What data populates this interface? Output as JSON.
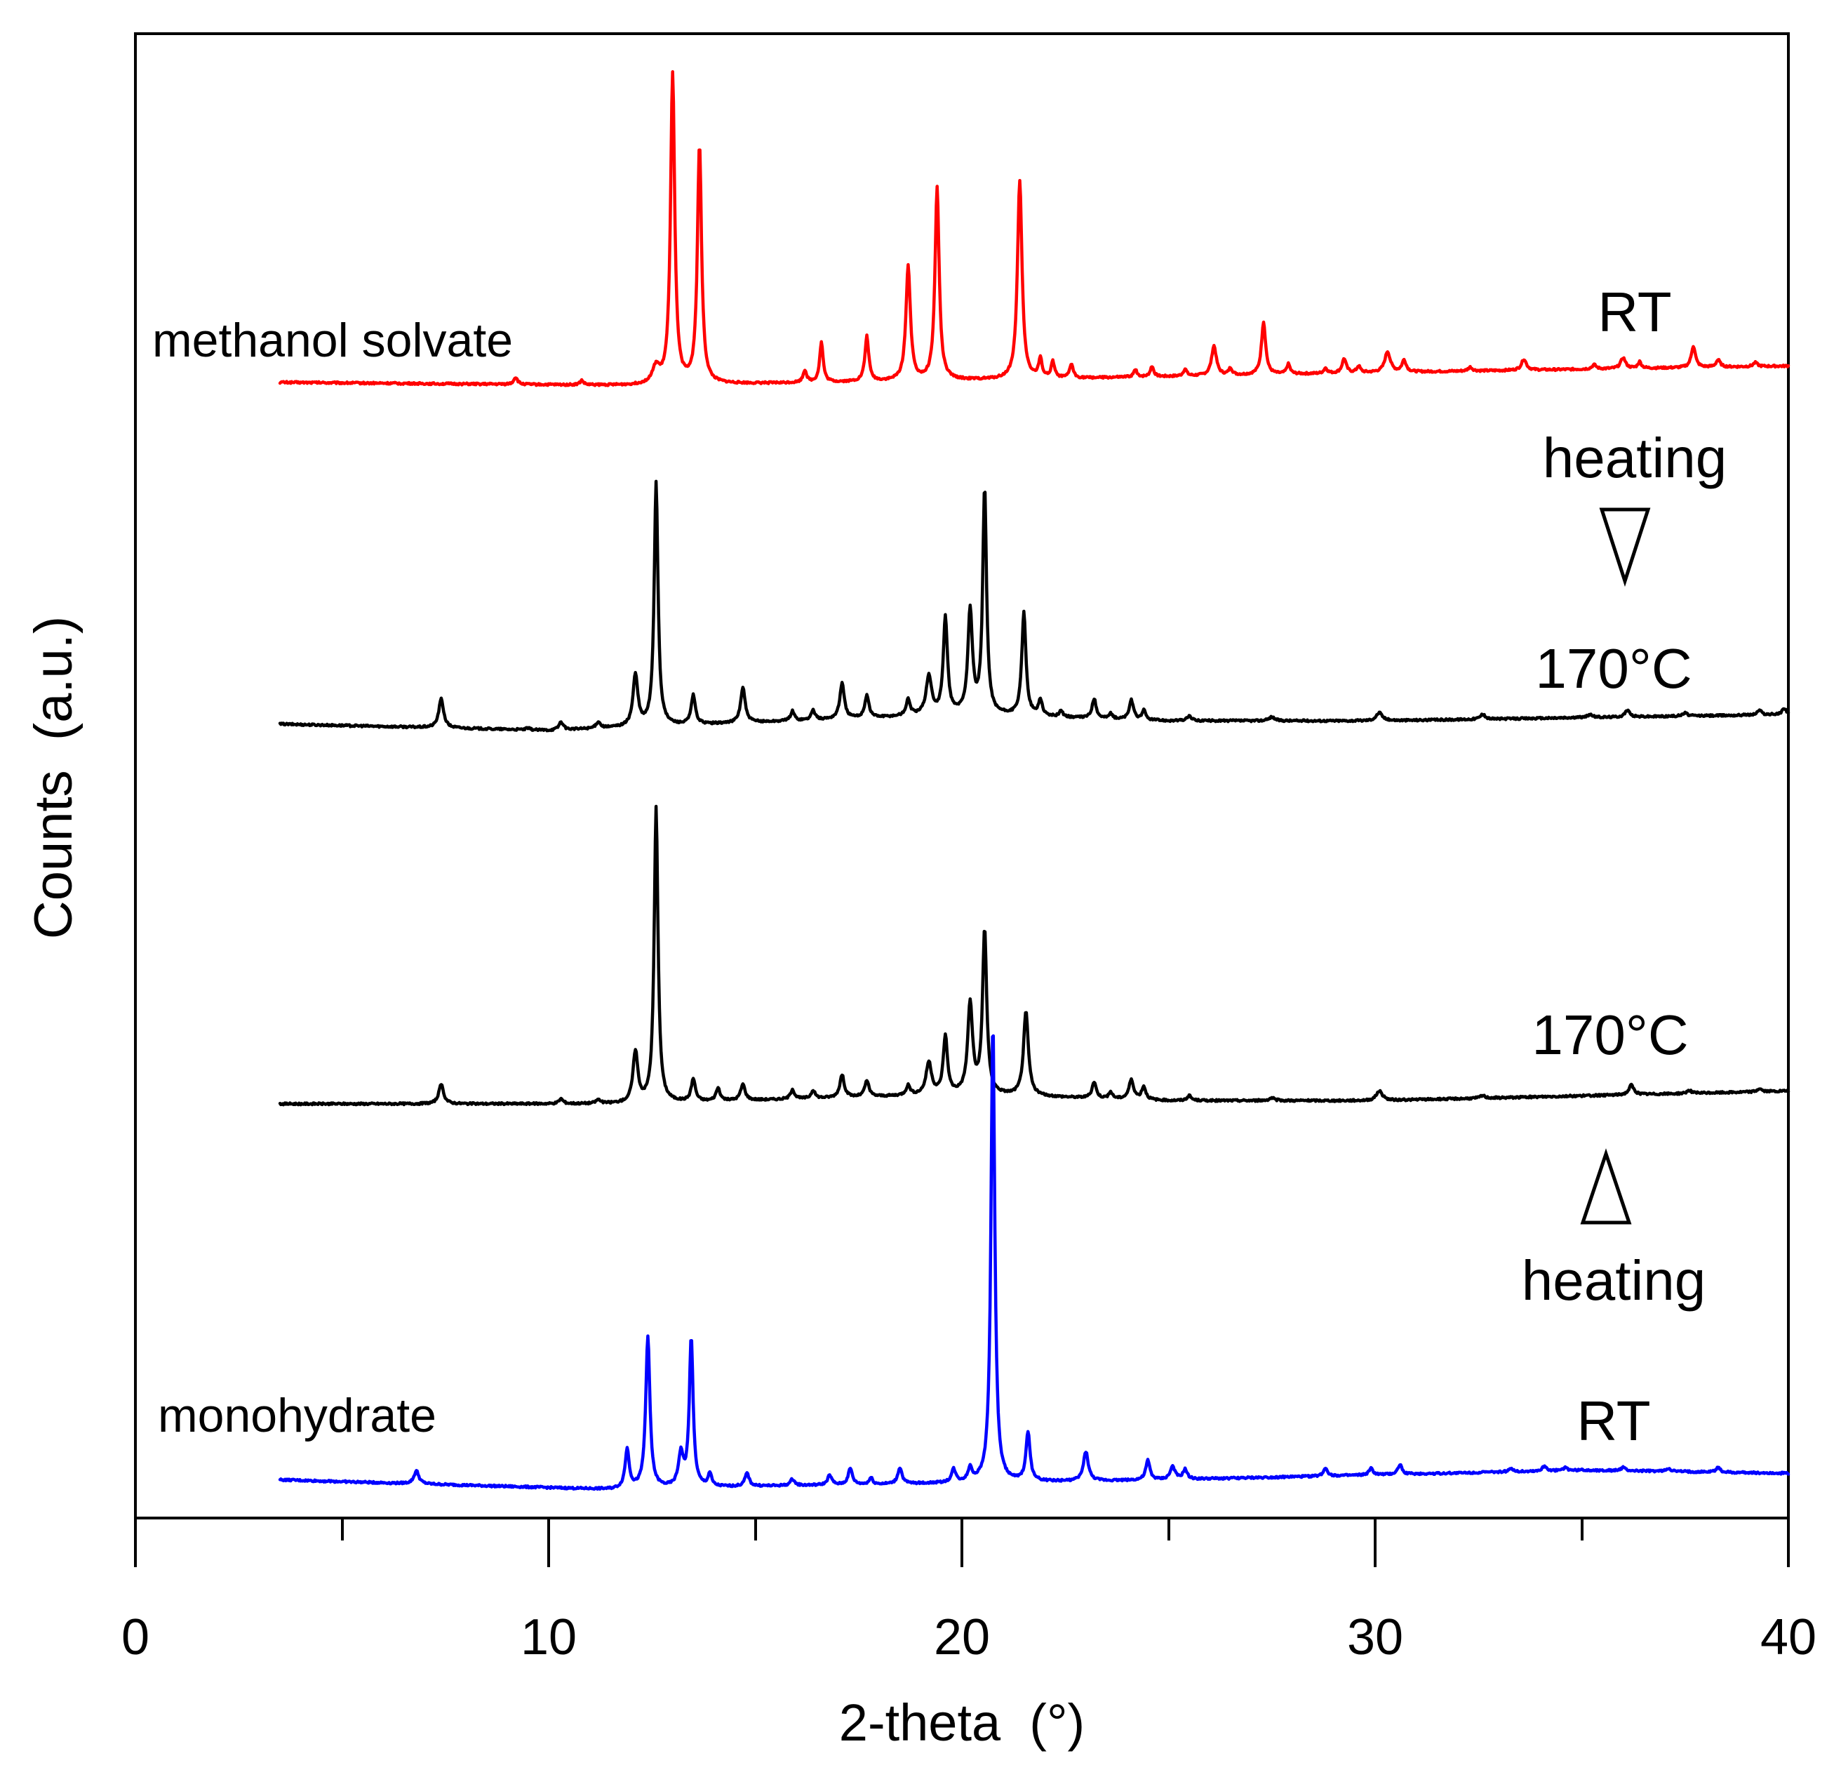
{
  "chart_data": {
    "type": "line",
    "title": "",
    "xlabel": "2-theta  (°)",
    "ylabel": "Counts  (a.u.)",
    "xlim": [
      0,
      40
    ],
    "x_ticks": [
      0,
      10,
      20,
      30,
      40
    ],
    "x_tick_labels": [
      "0",
      "10",
      "20",
      "30",
      "40"
    ],
    "y_ticks_shown": false,
    "grid": false,
    "legend": "none",
    "x_range_measured": [
      3.5,
      40
    ],
    "series": [
      {
        "name": "methanol solvate",
        "condition": "RT",
        "color": "#ff0000",
        "baseline": [
          [
            3.5,
            5
          ],
          [
            12,
            4
          ],
          [
            22,
            6
          ],
          [
            30,
            8
          ],
          [
            40,
            10
          ]
        ],
        "peaks": [
          [
            9.2,
            0.055,
            2.19
          ],
          [
            10.8,
            0.05,
            1.35
          ],
          [
            12.6,
            0.1,
            4.9
          ],
          [
            13.0,
            0.06,
            95.0
          ],
          [
            13.65,
            0.06,
            73.0
          ],
          [
            16.2,
            0.05,
            3.75
          ],
          [
            16.6,
            0.05,
            12.3
          ],
          [
            17.7,
            0.055,
            13.8
          ],
          [
            18.7,
            0.065,
            35.0
          ],
          [
            19.4,
            0.06,
            59.0
          ],
          [
            21.4,
            0.065,
            61.0
          ],
          [
            21.9,
            0.05,
            5.8
          ],
          [
            22.2,
            0.05,
            4.9
          ],
          [
            22.65,
            0.05,
            4.3
          ],
          [
            24.2,
            0.05,
            2.2
          ],
          [
            24.6,
            0.05,
            3.2
          ],
          [
            25.4,
            0.05,
            2.15
          ],
          [
            26.1,
            0.07,
            9.1
          ],
          [
            26.5,
            0.05,
            2.1
          ],
          [
            27.3,
            0.06,
            16.2
          ],
          [
            27.9,
            0.05,
            3.0
          ],
          [
            28.8,
            0.05,
            1.6
          ],
          [
            29.25,
            0.06,
            4.4
          ],
          [
            29.6,
            0.05,
            2.0
          ],
          [
            30.3,
            0.08,
            6.3
          ],
          [
            30.7,
            0.06,
            3.6
          ],
          [
            32.3,
            0.06,
            1.2
          ],
          [
            33.6,
            0.07,
            3.4
          ],
          [
            35.3,
            0.06,
            1.3
          ],
          [
            36.0,
            0.07,
            3.3
          ],
          [
            36.4,
            0.05,
            2.0
          ],
          [
            37.7,
            0.06,
            6.6
          ],
          [
            38.3,
            0.06,
            2.2
          ],
          [
            39.2,
            0.06,
            1.2
          ]
        ]
      },
      {
        "name": "170°C (from methanol solvate)",
        "condition": "170°C",
        "color": "#000000",
        "baseline": [
          [
            3.5,
            4
          ],
          [
            10,
            2
          ],
          [
            12,
            3
          ],
          [
            20,
            7
          ],
          [
            25,
            5
          ],
          [
            30,
            5
          ],
          [
            40,
            7
          ]
        ],
        "peaks": [
          [
            7.4,
            0.07,
            9.0
          ],
          [
            9.5,
            0.06,
            0.5
          ],
          [
            10.3,
            0.06,
            2.5
          ],
          [
            11.2,
            0.06,
            2.0
          ],
          [
            12.1,
            0.07,
            16.0
          ],
          [
            12.6,
            0.055,
            76.0
          ],
          [
            13.5,
            0.06,
            9.0
          ],
          [
            14.7,
            0.065,
            11.0
          ],
          [
            15.9,
            0.055,
            3.0
          ],
          [
            16.4,
            0.055,
            3.0
          ],
          [
            17.1,
            0.065,
            11.0
          ],
          [
            17.7,
            0.06,
            7.0
          ],
          [
            18.7,
            0.06,
            5.0
          ],
          [
            19.2,
            0.08,
            12.0
          ],
          [
            19.6,
            0.06,
            30.0
          ],
          [
            20.2,
            0.065,
            32.0
          ],
          [
            20.55,
            0.055,
            70.0
          ],
          [
            21.5,
            0.06,
            32.0
          ],
          [
            21.9,
            0.055,
            5.0
          ],
          [
            22.4,
            0.05,
            2.0
          ],
          [
            23.2,
            0.06,
            6.0
          ],
          [
            23.6,
            0.05,
            1.5
          ],
          [
            24.1,
            0.06,
            6.0
          ],
          [
            24.4,
            0.05,
            3.0
          ],
          [
            25.5,
            0.06,
            1.5
          ],
          [
            27.5,
            0.08,
            1.2
          ],
          [
            30.1,
            0.09,
            2.5
          ],
          [
            32.6,
            0.07,
            1.5
          ],
          [
            35.2,
            0.07,
            1.0
          ],
          [
            36.1,
            0.07,
            2.0
          ],
          [
            37.5,
            0.06,
            1.0
          ],
          [
            39.3,
            0.06,
            1.5
          ],
          [
            39.9,
            0.06,
            2.0
          ]
        ]
      },
      {
        "name": "170°C (from monohydrate)",
        "condition": "170°C",
        "color": "#000000",
        "baseline": [
          [
            3.5,
            2
          ],
          [
            12,
            2
          ],
          [
            20,
            5
          ],
          [
            25,
            3
          ],
          [
            30,
            3
          ],
          [
            40,
            6
          ]
        ],
        "peaks": [
          [
            7.4,
            0.07,
            6.0
          ],
          [
            10.3,
            0.06,
            1.5
          ],
          [
            11.2,
            0.06,
            1.2
          ],
          [
            12.1,
            0.07,
            16.0
          ],
          [
            12.6,
            0.055,
            92.0
          ],
          [
            13.5,
            0.06,
            7.0
          ],
          [
            14.1,
            0.06,
            4.0
          ],
          [
            14.7,
            0.065,
            5.0
          ],
          [
            15.9,
            0.055,
            3.0
          ],
          [
            16.4,
            0.055,
            2.5
          ],
          [
            17.1,
            0.065,
            7.0
          ],
          [
            17.7,
            0.06,
            5.0
          ],
          [
            18.7,
            0.06,
            3.0
          ],
          [
            19.2,
            0.08,
            10.0
          ],
          [
            19.6,
            0.06,
            18.0
          ],
          [
            20.2,
            0.07,
            28.0
          ],
          [
            20.55,
            0.06,
            51.0
          ],
          [
            21.55,
            0.07,
            26.0
          ],
          [
            23.2,
            0.06,
            5.0
          ],
          [
            23.6,
            0.05,
            2.0
          ],
          [
            24.1,
            0.07,
            6.0
          ],
          [
            24.4,
            0.06,
            4.0
          ],
          [
            25.5,
            0.06,
            1.5
          ],
          [
            27.5,
            0.08,
            0.8
          ],
          [
            30.1,
            0.09,
            3.0
          ],
          [
            32.6,
            0.07,
            0.8
          ],
          [
            36.2,
            0.07,
            3.0
          ],
          [
            37.6,
            0.06,
            1.0
          ],
          [
            39.3,
            0.06,
            1.0
          ]
        ]
      },
      {
        "name": "monohydrate",
        "condition": "RT",
        "color": "#0000ff",
        "baseline": [
          [
            3.5,
            4
          ],
          [
            11.5,
            1
          ],
          [
            15,
            2
          ],
          [
            25,
            4
          ],
          [
            35,
            7
          ],
          [
            40,
            6
          ]
        ],
        "peaks": [
          [
            6.8,
            0.07,
            4.0
          ],
          [
            11.9,
            0.06,
            12.0
          ],
          [
            12.4,
            0.06,
            47.0
          ],
          [
            13.2,
            0.07,
            10.0
          ],
          [
            13.45,
            0.055,
            46.0
          ],
          [
            13.9,
            0.05,
            4.0
          ],
          [
            14.8,
            0.06,
            4.0
          ],
          [
            15.9,
            0.06,
            2.0
          ],
          [
            16.8,
            0.06,
            3.0
          ],
          [
            17.3,
            0.06,
            5.0
          ],
          [
            17.8,
            0.05,
            2.0
          ],
          [
            18.5,
            0.06,
            5.0
          ],
          [
            19.8,
            0.06,
            4.0
          ],
          [
            20.2,
            0.06,
            4.0
          ],
          [
            20.75,
            0.055,
            142.0
          ],
          [
            21.6,
            0.06,
            15.0
          ],
          [
            23.0,
            0.07,
            9.0
          ],
          [
            24.5,
            0.06,
            6.0
          ],
          [
            25.1,
            0.07,
            4.0
          ],
          [
            25.4,
            0.06,
            3.0
          ],
          [
            28.8,
            0.06,
            2.5
          ],
          [
            29.9,
            0.06,
            2.0
          ],
          [
            30.6,
            0.06,
            3.0
          ],
          [
            33.3,
            0.06,
            1.0
          ],
          [
            34.1,
            0.06,
            1.5
          ],
          [
            34.6,
            0.05,
            1.0
          ],
          [
            36.0,
            0.06,
            1.0
          ],
          [
            37.1,
            0.06,
            1.0
          ],
          [
            38.3,
            0.06,
            1.5
          ]
        ]
      }
    ],
    "annotations": [
      {
        "text": "methanol solvate",
        "role": "sample-label"
      },
      {
        "text": "RT",
        "role": "condition-label"
      },
      {
        "text": "heating",
        "role": "process-label"
      },
      {
        "text": "170°C",
        "role": "condition-label"
      },
      {
        "text": "170°C",
        "role": "condition-label"
      },
      {
        "text": "heating",
        "role": "process-label"
      },
      {
        "text": "monohydrate",
        "role": "sample-label"
      },
      {
        "text": "RT",
        "role": "condition-label"
      }
    ]
  }
}
